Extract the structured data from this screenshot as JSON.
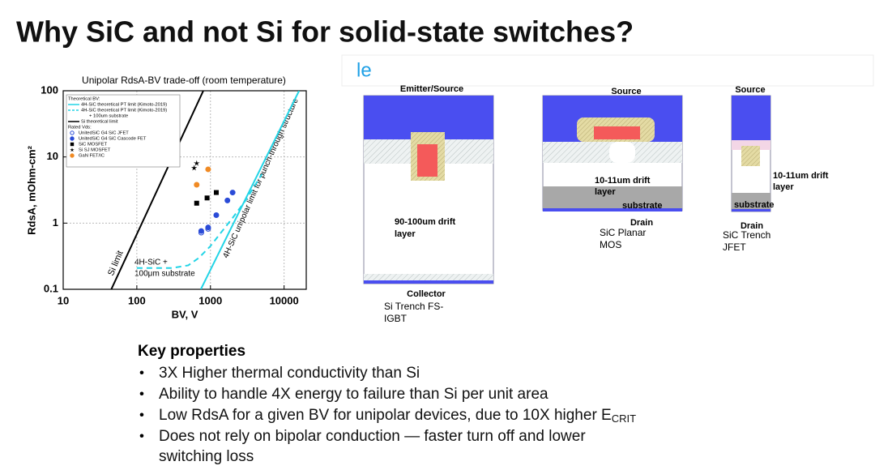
{
  "slide_title": "Why SiC and not Si for solid-state switches?",
  "partial_heading": "le",
  "chart_data": {
    "type": "scatter",
    "title": "Unipolar RdsA-BV trade-off (room temperature)",
    "x_label": "BV, V",
    "y_label": "RdsA, mOhm-cm²",
    "xscale": "log",
    "yscale": "log",
    "xlim": [
      10,
      20000
    ],
    "ylim": [
      0.1,
      100
    ],
    "xticks": [
      10,
      100,
      1000,
      10000
    ],
    "yticks": [
      0.1,
      1,
      10,
      100
    ],
    "grid": true,
    "legend_headers": [
      "Theoretical BV:",
      "Rated Vds:"
    ],
    "series": [
      {
        "name": "4H-SiC theoretical PT limit (Kimoto-2019)",
        "color": "#22d4e6",
        "line": "solid",
        "x": [
          740,
          16000
        ],
        "values": [
          0.1,
          100
        ]
      },
      {
        "name": "4H-SiC theoretical PT limit (Kimoto-2019)",
        "name_note": "+ 100um substrate",
        "color": "#22d4e6",
        "line": "dashed",
        "x": [
          100,
          300,
          500,
          700,
          1000,
          1500,
          2000,
          3000,
          5000
        ],
        "values": [
          0.21,
          0.21,
          0.23,
          0.3,
          0.45,
          0.8,
          1.2,
          2.2,
          5.5
        ]
      },
      {
        "name": "Si theoretical limit",
        "color": "#000000",
        "line": "solid",
        "x": [
          45,
          800
        ],
        "values": [
          0.1,
          100
        ]
      },
      {
        "name": "UnitedSiC G4 SiC JFET",
        "color": "#2a4bd7",
        "marker": "circle-open",
        "x": [
          750,
          930
        ],
        "values": [
          0.72,
          0.82
        ]
      },
      {
        "name": "UnitedSiC G4 SiC Cascode FET",
        "color": "#2a4bd7",
        "marker": "circle",
        "x": [
          750,
          930,
          1200,
          1700,
          2000
        ],
        "values": [
          0.76,
          0.86,
          1.32,
          2.2,
          2.9
        ]
      },
      {
        "name": "SiC MOSFET",
        "color": "#000000",
        "marker": "square",
        "x": [
          650,
          900,
          1200
        ],
        "values": [
          2,
          2.4,
          2.9
        ]
      },
      {
        "name": "Si SJ MOSFET",
        "color": "#000000",
        "marker": "star",
        "x": [
          600,
          650
        ],
        "values": [
          6.8,
          8
        ]
      },
      {
        "name": "GaN FET/IC",
        "color": "#f08a24",
        "marker": "circle",
        "x": [
          650,
          930
        ],
        "values": [
          3.8,
          6.5
        ]
      }
    ],
    "annotations": [
      "Si limit",
      "4H-SiC +",
      "100μm substrate",
      "4H-SiC unipolar limit for punch-through structure"
    ]
  },
  "diagrams": [
    {
      "top": "Emitter/Source",
      "drift": [
        "90-100um drift",
        "layer"
      ],
      "bottom": "Collector",
      "device": [
        "Si Trench FS-",
        "IGBT"
      ]
    },
    {
      "top": "Source",
      "drift": [
        "10-11um drift",
        "layer"
      ],
      "substrate": "substrate",
      "bottom": "Drain",
      "device": [
        "SiC Planar",
        "MOS"
      ]
    },
    {
      "top": "Source",
      "drift": [
        "10-11um  drift",
        "layer"
      ],
      "substrate": "substrate",
      "bottom": "Drain",
      "device": [
        "SiC Trench",
        "JFET"
      ]
    }
  ],
  "key_properties": {
    "heading": "Key properties",
    "bullets": [
      {
        "text": "3X Higher thermal conductivity than Si"
      },
      {
        "text": "Ability to handle 4X energy to failure than Si per unit area"
      },
      {
        "text": "Low RdsA for a given BV for unipolar devices, due to 10X higher E",
        "sub": "CRIT"
      },
      {
        "text": "Does not rely on bipolar conduction — faster turn off and lower"
      },
      {
        "text": "switching loss"
      }
    ]
  }
}
